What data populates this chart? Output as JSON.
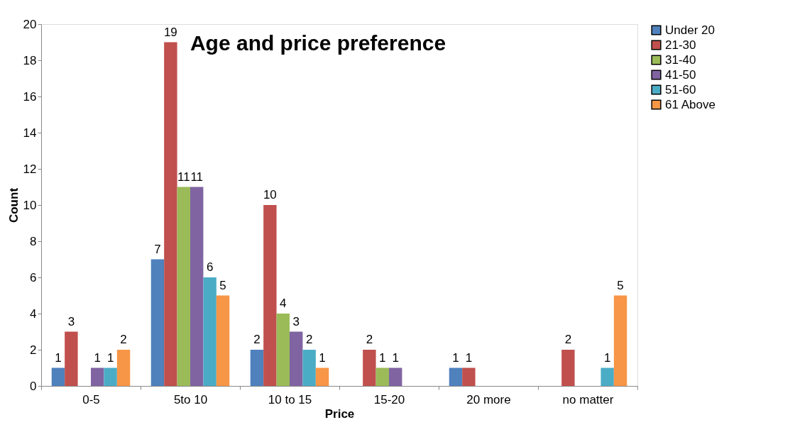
{
  "chart_data": {
    "type": "bar",
    "title": "Age and price preference",
    "xlabel": "Price",
    "ylabel": "Count",
    "categories": [
      "0-5",
      "5to 10",
      "10 to 15",
      "15-20",
      "20 more",
      "no matter"
    ],
    "series": [
      {
        "name": "Under 20",
        "color": "#4f81bd",
        "values": [
          1,
          7,
          2,
          null,
          1,
          null
        ]
      },
      {
        "name": "21-30",
        "color": "#c0504d",
        "values": [
          3,
          19,
          10,
          2,
          1,
          2
        ]
      },
      {
        "name": "31-40",
        "color": "#9bbb59",
        "values": [
          null,
          11,
          4,
          1,
          null,
          null
        ]
      },
      {
        "name": "41-50",
        "color": "#8064a2",
        "values": [
          1,
          11,
          3,
          1,
          null,
          null
        ]
      },
      {
        "name": "51-60",
        "color": "#4bacc6",
        "values": [
          1,
          6,
          2,
          null,
          null,
          1
        ]
      },
      {
        "name": "61 Above",
        "color": "#f79646",
        "values": [
          2,
          5,
          1,
          null,
          null,
          5
        ]
      }
    ],
    "ylim": [
      0,
      20
    ],
    "yticks": [
      0,
      2,
      4,
      6,
      8,
      10,
      12,
      14,
      16,
      18,
      20
    ],
    "grid": false,
    "legend": "right",
    "data_labels": true
  }
}
